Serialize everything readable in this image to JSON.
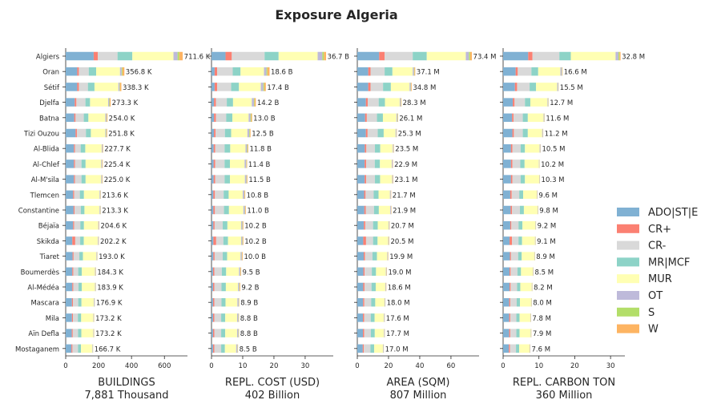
{
  "chart_data": {
    "type": "bar",
    "orientation": "horizontal",
    "stacked": true,
    "title": "Exposure Algeria",
    "categories": [
      "Algiers",
      "Oran",
      "Sétif",
      "Djelfa",
      "Batna",
      "Tizi Ouzou",
      "Al-Blida",
      "Al-Chlef",
      "Al-M'sila",
      "Tlemcen",
      "Constantine",
      "Béjaïa",
      "Skikda",
      "Tiaret",
      "Boumerdès",
      "Al-Médéa",
      "Mascara",
      "Mila",
      "Aïn Defla",
      "Mostaganem"
    ],
    "legend": {
      "position": "right",
      "entries": [
        {
          "name": "ADO|ST|E",
          "color": "#80b1d3"
        },
        {
          "name": "CR+",
          "color": "#fb8072"
        },
        {
          "name": "CR-",
          "color": "#d9d9d9"
        },
        {
          "name": "MR|MCF",
          "color": "#8dd3c7"
        },
        {
          "name": "MUR",
          "color": "#ffffb3"
        },
        {
          "name": "OT",
          "color": "#bebada"
        },
        {
          "name": "S",
          "color": "#b3de69"
        },
        {
          "name": "W",
          "color": "#fdb462"
        }
      ]
    },
    "grid": false,
    "panels": [
      {
        "xlabel": "BUILDINGS",
        "subtitle": "7,881 Thousand",
        "xlim": [
          0,
          740
        ],
        "ticks": [
          0,
          200,
          400,
          600
        ],
        "tick_labels": [
          "0",
          "200",
          "400",
          "600"
        ],
        "totals": [
          711.6,
          356.8,
          338.3,
          273.3,
          254.0,
          251.8,
          227.7,
          225.4,
          225.0,
          213.6,
          213.3,
          204.6,
          202.2,
          193.0,
          184.3,
          183.9,
          176.9,
          173.2,
          173.2,
          166.7
        ],
        "total_labels": [
          "711.6 K",
          "356.8 K",
          "338.3 K",
          "273.3 K",
          "254.0 K",
          "251.8 K",
          "227.7 K",
          "225.4 K",
          "225.0 K",
          "213.6 K",
          "213.3 K",
          "204.6 K",
          "202.2 K",
          "193.0 K",
          "184.3 K",
          "183.9 K",
          "176.9 K",
          "173.2 K",
          "173.2 K",
          "166.7 K"
        ],
        "segments": [
          [
            170,
            25,
            120,
            90,
            250,
            25,
            10,
            21
          ],
          [
            70,
            10,
            60,
            45,
            145,
            10,
            5,
            11.8
          ],
          [
            70,
            10,
            55,
            40,
            145,
            7,
            3,
            8.3
          ],
          [
            55,
            10,
            55,
            28,
            110,
            7,
            3,
            5.3
          ],
          [
            52,
            8,
            50,
            28,
            103,
            7,
            2,
            4
          ],
          [
            60,
            8,
            55,
            30,
            88,
            5,
            2,
            3.8
          ],
          [
            50,
            6,
            35,
            28,
            100,
            5,
            1.5,
            2.2
          ],
          [
            50,
            6,
            40,
            25,
            95,
            5,
            1.5,
            2.9
          ],
          [
            50,
            6,
            40,
            25,
            95,
            5,
            1.5,
            2.5
          ],
          [
            45,
            6,
            35,
            25,
            95,
            5,
            1,
            1.6
          ],
          [
            48,
            6,
            38,
            22,
            92,
            5,
            1,
            1.3
          ],
          [
            45,
            6,
            38,
            22,
            87,
            4,
            1,
            1.6
          ],
          [
            40,
            18,
            30,
            22,
            86,
            4,
            1,
            1.2
          ],
          [
            42,
            6,
            35,
            22,
            82,
            4,
            1,
            1
          ],
          [
            40,
            6,
            30,
            22,
            80,
            4,
            1,
            1.3
          ],
          [
            40,
            6,
            32,
            20,
            80,
            4,
            1,
            0.9
          ],
          [
            38,
            6,
            32,
            20,
            75,
            4,
            1,
            0.9
          ],
          [
            38,
            6,
            30,
            20,
            74,
            3,
            1,
            1.2
          ],
          [
            37,
            6,
            32,
            20,
            73,
            3,
            1,
            1.2
          ],
          [
            35,
            6,
            34,
            18,
            69,
            3,
            1,
            0.7
          ]
        ]
      },
      {
        "xlabel": "REPL. COST (USD)",
        "subtitle": "402 Billion",
        "xlim": [
          0,
          39
        ],
        "ticks": [
          0,
          10,
          20,
          30
        ],
        "tick_labels": [
          "0",
          "10",
          "20",
          "30"
        ],
        "totals": [
          36.7,
          18.6,
          17.4,
          14.2,
          13.0,
          12.5,
          11.8,
          11.4,
          11.5,
          10.8,
          11.0,
          10.2,
          10.2,
          10.0,
          9.5,
          9.2,
          8.9,
          8.8,
          8.8,
          8.5
        ],
        "total_labels": [
          "36.7 B",
          "18.6 B",
          "17.4 B",
          "14.2 B",
          "13.0 B",
          "12.5 B",
          "11.8 B",
          "11.4 B",
          "11.5 B",
          "10.8 B",
          "11.0 B",
          "10.2 B",
          "10.2 B",
          "10.0 B",
          "9.5 B",
          "9.2 B",
          "8.9 B",
          "8.8 B",
          "8.8 B",
          "8.5 B"
        ],
        "segments": [
          [
            4.5,
            2.0,
            10.5,
            4.5,
            12.5,
            1.5,
            0.5,
            0.7
          ],
          [
            1.0,
            0.8,
            5.0,
            2.5,
            7.5,
            0.8,
            0.3,
            0.7
          ],
          [
            1.0,
            0.8,
            4.5,
            2.5,
            7.0,
            0.8,
            0.3,
            0.5
          ],
          [
            0.8,
            0.6,
            3.5,
            2.0,
            6.0,
            0.7,
            0.2,
            0.4
          ],
          [
            0.8,
            0.6,
            3.3,
            2.0,
            5.2,
            0.6,
            0.2,
            0.3
          ],
          [
            0.8,
            0.5,
            3.0,
            2.0,
            5.2,
            0.6,
            0.2,
            0.2
          ],
          [
            0.7,
            0.5,
            3.0,
            1.8,
            4.9,
            0.5,
            0.2,
            0.2
          ],
          [
            0.7,
            0.5,
            3.0,
            1.7,
            4.7,
            0.5,
            0.1,
            0.2
          ],
          [
            0.7,
            0.5,
            3.0,
            1.7,
            4.8,
            0.5,
            0.1,
            0.2
          ],
          [
            0.6,
            0.5,
            2.8,
            1.6,
            4.5,
            0.5,
            0.1,
            0.2
          ],
          [
            0.6,
            0.5,
            2.9,
            1.6,
            4.6,
            0.5,
            0.1,
            0.2
          ],
          [
            0.6,
            0.4,
            2.6,
            1.5,
            4.4,
            0.4,
            0.1,
            0.2
          ],
          [
            0.6,
            0.9,
            2.3,
            1.5,
            4.2,
            0.4,
            0.1,
            0.2
          ],
          [
            0.6,
            0.4,
            2.6,
            1.4,
            4.3,
            0.4,
            0.1,
            0.2
          ],
          [
            0.5,
            0.4,
            2.4,
            1.4,
            4.1,
            0.4,
            0.1,
            0.2
          ],
          [
            0.5,
            0.4,
            2.3,
            1.4,
            3.9,
            0.4,
            0.1,
            0.2
          ],
          [
            0.5,
            0.4,
            2.3,
            1.3,
            3.8,
            0.4,
            0.1,
            0.1
          ],
          [
            0.5,
            0.4,
            2.2,
            1.3,
            3.8,
            0.4,
            0.1,
            0.1
          ],
          [
            0.5,
            0.4,
            2.2,
            1.3,
            3.8,
            0.4,
            0.1,
            0.1
          ],
          [
            0.5,
            0.4,
            2.2,
            1.2,
            3.6,
            0.4,
            0.1,
            0.1
          ]
        ]
      },
      {
        "xlabel": "AREA (SQM)",
        "subtitle": "807 Million",
        "xlim": [
          0,
          78
        ],
        "ticks": [
          0,
          20,
          40,
          60
        ],
        "tick_labels": [
          "0",
          "20",
          "40",
          "60"
        ],
        "totals": [
          73.4,
          37.1,
          34.8,
          28.3,
          26.1,
          25.3,
          23.5,
          22.9,
          23.1,
          21.7,
          21.9,
          20.7,
          20.5,
          19.9,
          19.0,
          18.6,
          18.0,
          17.6,
          17.7,
          17.0
        ],
        "total_labels": [
          "73.4 M",
          "37.1 M",
          "34.8 M",
          "28.3 M",
          "26.1 M",
          "25.3 M",
          "23.5 M",
          "22.9 M",
          "23.1 M",
          "21.7 M",
          "21.9 M",
          "20.7 M",
          "20.5 M",
          "19.9 M",
          "19.0 M",
          "18.6 M",
          "18.0 M",
          "17.6 M",
          "17.7 M",
          "17.0 M"
        ],
        "segments": [
          [
            14,
            3.5,
            18,
            9,
            25,
            2,
            0.8,
            1.1
          ],
          [
            7,
            1.5,
            9,
            5,
            13,
            0.8,
            0.3,
            0.5
          ],
          [
            7,
            1.5,
            8,
            5,
            12,
            0.7,
            0.2,
            0.4
          ],
          [
            5.5,
            1.2,
            7,
            4,
            9.5,
            0.6,
            0.2,
            0.3
          ],
          [
            5,
            1.1,
            6.5,
            3.8,
            8.7,
            0.6,
            0.2,
            0.2
          ],
          [
            5.5,
            1.1,
            6.5,
            3.8,
            7.6,
            0.5,
            0.1,
            0.2
          ],
          [
            4.8,
            1.0,
            5.5,
            3.4,
            8,
            0.5,
            0.1,
            0.2
          ],
          [
            4.7,
            1.0,
            5.5,
            3.3,
            7.6,
            0.5,
            0.1,
            0.2
          ],
          [
            4.7,
            1.0,
            5.6,
            3.3,
            7.7,
            0.5,
            0.1,
            0.2
          ],
          [
            4.4,
            0.9,
            5.2,
            3.1,
            7.3,
            0.5,
            0.1,
            0.2
          ],
          [
            4.5,
            0.9,
            5.3,
            3.1,
            7.3,
            0.5,
            0.1,
            0.2
          ],
          [
            4.2,
            0.9,
            5.0,
            3.0,
            6.9,
            0.4,
            0.1,
            0.2
          ],
          [
            3.8,
            1.8,
            4.5,
            2.9,
            6.8,
            0.4,
            0.1,
            0.2
          ],
          [
            4.1,
            0.8,
            4.8,
            2.9,
            6.6,
            0.4,
            0.1,
            0.2
          ],
          [
            3.9,
            0.8,
            4.6,
            2.7,
            6.3,
            0.4,
            0.1,
            0.2
          ],
          [
            3.8,
            0.8,
            4.5,
            2.7,
            6.1,
            0.4,
            0.1,
            0.2
          ],
          [
            3.7,
            0.8,
            4.4,
            2.6,
            5.9,
            0.4,
            0.1,
            0.1
          ],
          [
            3.6,
            0.8,
            4.2,
            2.5,
            5.9,
            0.4,
            0.1,
            0.1
          ],
          [
            3.6,
            0.8,
            4.3,
            2.5,
            5.9,
            0.4,
            0.1,
            0.1
          ],
          [
            3.5,
            0.7,
            4.2,
            2.4,
            5.6,
            0.4,
            0.1,
            0.1
          ]
        ]
      },
      {
        "xlabel": "REPL. CARBON TON",
        "subtitle": "360 Million",
        "xlim": [
          0,
          34
        ],
        "ticks": [
          0,
          10,
          20,
          30
        ],
        "tick_labels": [
          "0",
          "10",
          "20",
          "30"
        ],
        "totals": [
          32.8,
          16.6,
          15.5,
          12.7,
          11.6,
          11.2,
          10.5,
          10.2,
          10.3,
          9.6,
          9.8,
          9.2,
          9.1,
          8.9,
          8.5,
          8.2,
          8.0,
          7.8,
          7.9,
          7.6
        ],
        "total_labels": [
          "32.8 M",
          "16.6 M",
          "15.5 M",
          "12.7 M",
          "11.6 M",
          "11.2 M",
          "10.5 M",
          "10.2 M",
          "10.3 M",
          "9.6 M",
          "9.8 M",
          "9.2 M",
          "9.1 M",
          "8.9 M",
          "8.5 M",
          "8.2 M",
          "8.0 M",
          "7.8 M",
          "7.9 M",
          "7.6 M"
        ],
        "segments": [
          [
            7,
            1.2,
            7.5,
            3.2,
            12.5,
            0.8,
            0.3,
            0.3
          ],
          [
            3.5,
            0.6,
            3.8,
            1.9,
            6.2,
            0.4,
            0.1,
            0.1
          ],
          [
            3.3,
            0.6,
            3.5,
            1.8,
            5.9,
            0.3,
            0.05,
            0.05
          ],
          [
            2.7,
            0.5,
            2.9,
            1.5,
            4.8,
            0.2,
            0.05,
            0.05
          ],
          [
            2.5,
            0.4,
            2.6,
            1.4,
            4.4,
            0.2,
            0.05,
            0.05
          ],
          [
            2.6,
            0.4,
            2.5,
            1.4,
            4.0,
            0.2,
            0.05,
            0.05
          ],
          [
            2.2,
            0.4,
            2.3,
            1.2,
            4.1,
            0.2,
            0.05,
            0.05
          ],
          [
            2.2,
            0.4,
            2.2,
            1.2,
            4.0,
            0.1,
            0.05,
            0.05
          ],
          [
            2.2,
            0.4,
            2.3,
            1.2,
            4.0,
            0.1,
            0.05,
            0.05
          ],
          [
            2.0,
            0.4,
            2.1,
            1.1,
            3.8,
            0.1,
            0.05,
            0.05
          ],
          [
            2.1,
            0.4,
            2.2,
            1.1,
            3.8,
            0.1,
            0.05,
            0.05
          ],
          [
            2.0,
            0.3,
            2.0,
            1.1,
            3.6,
            0.1,
            0.05,
            0.05
          ],
          [
            1.8,
            0.7,
            1.8,
            1.0,
            3.6,
            0.1,
            0.05,
            0.05
          ],
          [
            1.9,
            0.3,
            2.0,
            1.0,
            3.5,
            0.1,
            0.05,
            0.05
          ],
          [
            1.8,
            0.3,
            1.9,
            1.0,
            3.3,
            0.1,
            0.05,
            0.05
          ],
          [
            1.8,
            0.3,
            1.8,
            0.9,
            3.2,
            0.1,
            0.05,
            0.05
          ],
          [
            1.7,
            0.3,
            1.8,
            0.9,
            3.1,
            0.1,
            0.05,
            0.05
          ],
          [
            1.7,
            0.3,
            1.7,
            0.9,
            3.0,
            0.1,
            0.05,
            0.05
          ],
          [
            1.7,
            0.3,
            1.7,
            0.9,
            3.1,
            0.1,
            0.05,
            0.05
          ],
          [
            1.6,
            0.3,
            1.7,
            0.9,
            2.9,
            0.1,
            0.05,
            0.05
          ]
        ]
      }
    ]
  }
}
